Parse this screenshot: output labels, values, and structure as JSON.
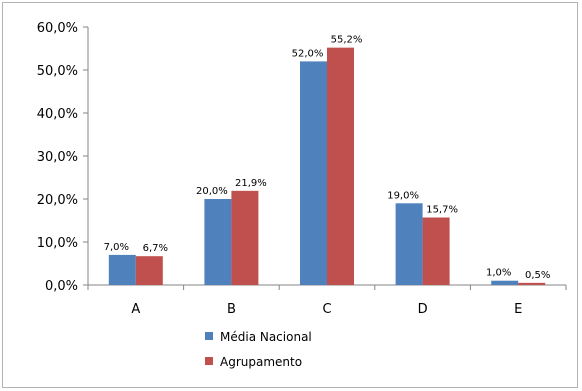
{
  "chart_data": {
    "type": "bar",
    "categories": [
      "A",
      "B",
      "C",
      "D",
      "E"
    ],
    "series": [
      {
        "name": "Média Nacional",
        "color": "#4F81BD",
        "values": [
          7.0,
          20.0,
          52.0,
          19.0,
          1.0
        ],
        "labels": [
          "7,0%",
          "20,0%",
          "52,0%",
          "19,0%",
          "1,0%"
        ]
      },
      {
        "name": "Agrupamento",
        "color": "#C0504D",
        "values": [
          6.7,
          21.9,
          55.2,
          15.7,
          0.5
        ],
        "labels": [
          "6,7%",
          "21,9%",
          "55,2%",
          "15,7%",
          "0,5%"
        ]
      }
    ],
    "yticks": [
      0,
      10,
      20,
      30,
      40,
      50,
      60
    ],
    "ytick_labels": [
      "0,0%",
      "10,0%",
      "20,0%",
      "30,0%",
      "40,0%",
      "50,0%",
      "60,0%"
    ],
    "ylim": [
      0,
      60
    ],
    "grid": false,
    "legend_position": "bottom",
    "title": "",
    "xlabel": "",
    "ylabel": ""
  }
}
